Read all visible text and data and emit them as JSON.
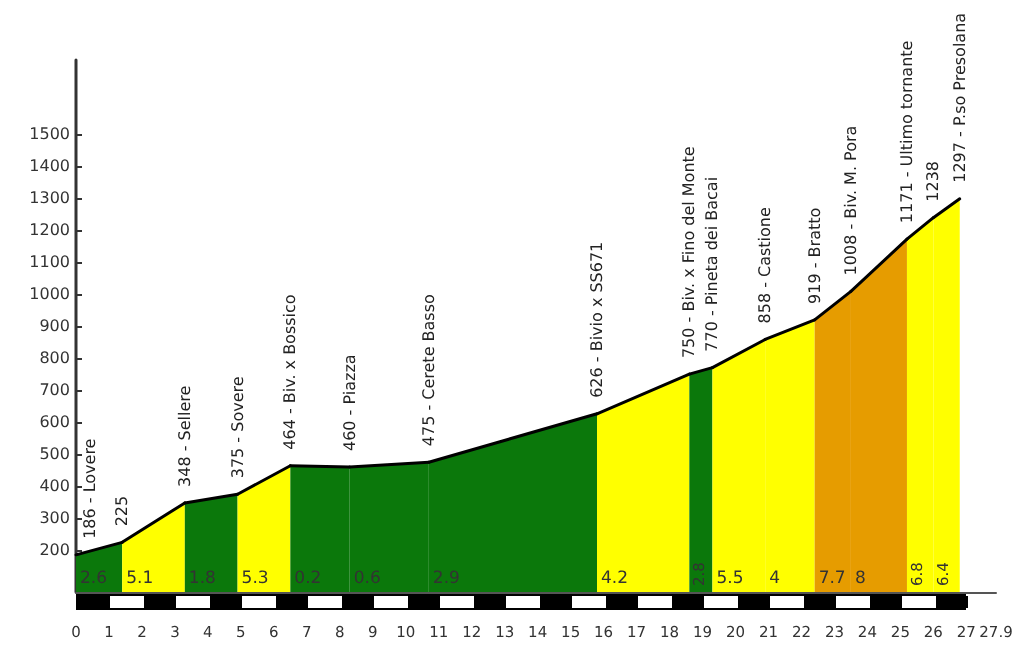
{
  "chart_data": {
    "type": "area",
    "xlim": [
      0,
      27.9
    ],
    "ylim": [
      70,
      1730
    ],
    "xticks": [
      0,
      1,
      2,
      3,
      4,
      5,
      6,
      7,
      8,
      9,
      10,
      11,
      12,
      13,
      14,
      15,
      16,
      17,
      18,
      19,
      20,
      21,
      22,
      23,
      24,
      25,
      26,
      27,
      27.9
    ],
    "yticks": [
      200,
      300,
      400,
      500,
      600,
      700,
      800,
      900,
      1000,
      1100,
      1200,
      1300,
      1400,
      1500
    ],
    "grid": false,
    "marker": "none",
    "line_style": "solid",
    "series": [
      {
        "color": "#0b780b",
        "x": [
          0,
          1.4
        ],
        "values": [
          186,
          225
        ]
      },
      {
        "color": "#ffff00",
        "x": [
          1.4,
          3.3
        ],
        "values": [
          225,
          348
        ]
      },
      {
        "color": "#0b780b",
        "x": [
          3.3,
          4.9
        ],
        "values": [
          348,
          375
        ]
      },
      {
        "color": "#ffff00",
        "x": [
          4.9,
          6.5
        ],
        "values": [
          375,
          464
        ]
      },
      {
        "color": "#0b780b",
        "x": [
          6.5,
          8.3
        ],
        "values": [
          464,
          460
        ]
      },
      {
        "color": "#0b780b",
        "x": [
          8.3,
          10.7
        ],
        "values": [
          460,
          475
        ]
      },
      {
        "color": "#0b780b",
        "x": [
          10.7,
          15.8
        ],
        "values": [
          475,
          626
        ]
      },
      {
        "color": "#ffff00",
        "x": [
          15.8,
          18.6
        ],
        "values": [
          626,
          750
        ]
      },
      {
        "color": "#0b780b",
        "x": [
          18.6,
          19.3
        ],
        "values": [
          750,
          770
        ]
      },
      {
        "color": "#ffff00",
        "x": [
          19.3,
          20.9
        ],
        "values": [
          770,
          858
        ]
      },
      {
        "color": "#ffff00",
        "x": [
          20.9,
          22.4
        ],
        "values": [
          858,
          919
        ]
      },
      {
        "color": "#e69c00",
        "x": [
          22.4,
          23.5
        ],
        "values": [
          919,
          1008
        ]
      },
      {
        "color": "#e69c00",
        "x": [
          23.5,
          25.2
        ],
        "values": [
          1008,
          1171
        ]
      },
      {
        "color": "#ffff00",
        "x": [
          25.2,
          26.0
        ],
        "values": [
          1171,
          1238
        ]
      },
      {
        "color": "#ffff00",
        "x": [
          26.0,
          26.8
        ],
        "values": [
          1238,
          1297
        ]
      }
    ],
    "annotations": [
      {
        "text": "186 - Lovere",
        "x": 0,
        "y": 186
      },
      {
        "text": "225",
        "x": 1.4,
        "y": 225
      },
      {
        "text": "348 - Sellere",
        "x": 3.3,
        "y": 348
      },
      {
        "text": "375 - Sovere",
        "x": 4.9,
        "y": 375
      },
      {
        "text": "464 - Biv. x Bossico",
        "x": 6.5,
        "y": 464
      },
      {
        "text": "460 - Piazza",
        "x": 8.3,
        "y": 460
      },
      {
        "text": "475 - Cerete Basso",
        "x": 10.7,
        "y": 475
      },
      {
        "text": "626 - Bivio x SS671",
        "x": 15.8,
        "y": 626
      },
      {
        "text": "750 - Biv. x Fino del Monte",
        "x": 18.6,
        "y": 750
      },
      {
        "text": "770 - Pineta dei Bacai",
        "x": 19.3,
        "y": 770
      },
      {
        "text": "858 - Castione",
        "x": 20.9,
        "y": 858
      },
      {
        "text": "919 - Bratto",
        "x": 22.4,
        "y": 919
      },
      {
        "text": "1008 - Biv. M. Pora",
        "x": 23.5,
        "y": 1008
      },
      {
        "text": "1171 - Ultimo tornante",
        "x": 25.2,
        "y": 1171
      },
      {
        "text": "1238",
        "x": 26.0,
        "y": 1238
      },
      {
        "text": "1297 - P.so Presolana",
        "x": 26.8,
        "y": 1297
      },
      {
        "text": "2.6",
        "x": 0,
        "y": 70
      },
      {
        "text": "5.1",
        "x": 1.4,
        "y": 70
      },
      {
        "text": "1.8",
        "x": 3.3,
        "y": 70
      },
      {
        "text": "5.3",
        "x": 4.9,
        "y": 70
      },
      {
        "text": "0.2",
        "x": 6.5,
        "y": 70
      },
      {
        "text": "0.6",
        "x": 8.3,
        "y": 70
      },
      {
        "text": "2.9",
        "x": 10.7,
        "y": 70
      },
      {
        "text": "4.2",
        "x": 15.8,
        "y": 70
      },
      {
        "text": "2.8",
        "x": 18.6,
        "y": 70
      },
      {
        "text": "5.5",
        "x": 19.3,
        "y": 70
      },
      {
        "text": "4",
        "x": 20.9,
        "y": 70
      },
      {
        "text": "7.7",
        "x": 22.4,
        "y": 70
      },
      {
        "text": "8",
        "x": 23.5,
        "y": 70
      },
      {
        "text": "6.8",
        "x": 25.2,
        "y": 70
      },
      {
        "text": "6.4",
        "x": 26.0,
        "y": 70
      }
    ]
  }
}
